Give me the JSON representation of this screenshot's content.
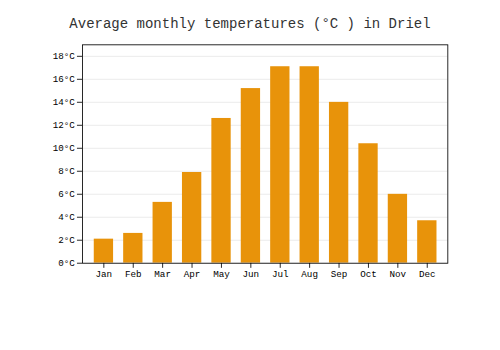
{
  "chart_data": {
    "type": "bar",
    "title": "Average monthly temperatures (°C ) in Driel",
    "categories": [
      "Jan",
      "Feb",
      "Mar",
      "Apr",
      "May",
      "Jun",
      "Jul",
      "Aug",
      "Sep",
      "Oct",
      "Nov",
      "Dec"
    ],
    "values": [
      2.1,
      2.6,
      5.3,
      7.9,
      12.6,
      15.2,
      17.1,
      17.1,
      14.0,
      10.4,
      6.0,
      3.7
    ],
    "color": "#E8930A",
    "ylim": [
      0,
      19
    ],
    "yticks": [
      {
        "value": 0,
        "label": "0°C"
      },
      {
        "value": 2,
        "label": "2°C"
      },
      {
        "value": 4,
        "label": "4°C"
      },
      {
        "value": 6,
        "label": "6°C"
      },
      {
        "value": 8,
        "label": "8°C"
      },
      {
        "value": 10,
        "label": "10°C"
      },
      {
        "value": 12,
        "label": "12°C"
      },
      {
        "value": 14,
        "label": "14°C"
      },
      {
        "value": 16,
        "label": "16°C"
      },
      {
        "value": 18,
        "label": "18°C"
      }
    ],
    "grid": true
  }
}
